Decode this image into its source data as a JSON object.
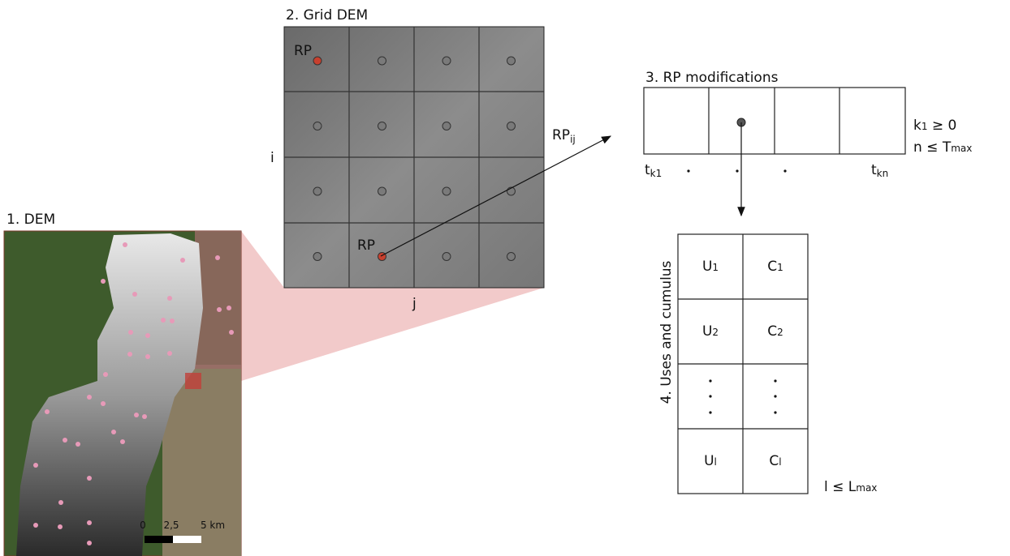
{
  "dem": {
    "title": "1. DEM",
    "scale_labels": [
      "0",
      "2,5",
      "5 km"
    ]
  },
  "grid": {
    "title": "2. Grid DEM",
    "row_axis": "i",
    "col_axis": "j",
    "rp_labels": [
      "RP",
      "RP"
    ],
    "arrow_label": {
      "base": "RP",
      "sub": "ij"
    }
  },
  "modifications": {
    "title": "3. RP modifications",
    "start": {
      "base": "t",
      "sub": "k1"
    },
    "end": {
      "base": "t",
      "sub": "kn"
    },
    "conditions": [
      {
        "base": "k",
        "sub": "1",
        "rest": " ≥ 0"
      },
      {
        "base": "n ≤ T",
        "sub": "max"
      }
    ]
  },
  "uses": {
    "title": "4. Uses and cumulus",
    "rows": [
      [
        {
          "base": "U",
          "sub": "1"
        },
        {
          "base": "C",
          "sub": "1"
        }
      ],
      [
        {
          "base": "U",
          "sub": "2"
        },
        {
          "base": "C",
          "sub": "2"
        }
      ],
      [
        {
          "base": "U",
          "sub": "l"
        },
        {
          "base": "C",
          "sub": "l"
        }
      ]
    ],
    "condition": {
      "base": "l ≤ L",
      "sub": "max"
    }
  }
}
